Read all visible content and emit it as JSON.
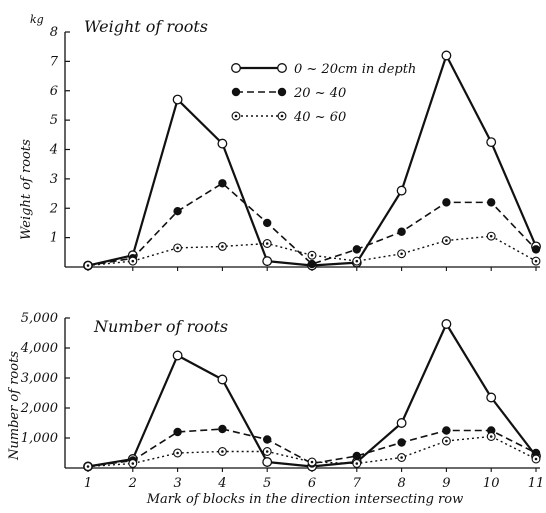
{
  "chart_data": [
    {
      "type": "line",
      "title": "Weight of roots",
      "unit": "kg",
      "ylabel": "Weight of roots",
      "xlabel": "",
      "categories": [
        "1",
        "2",
        "3",
        "4",
        "5",
        "6",
        "7",
        "8",
        "9",
        "10",
        "11"
      ],
      "y_ticks": [
        "1",
        "2",
        "3",
        "4",
        "5",
        "6",
        "7",
        "8"
      ],
      "ylim": [
        0,
        8
      ],
      "grid": false,
      "legend_position": "top-right",
      "series": [
        {
          "name": "0 ~ 20cm in depth",
          "values": [
            0.05,
            0.4,
            5.7,
            4.2,
            0.2,
            0.05,
            0.15,
            2.6,
            7.2,
            4.25,
            0.7
          ],
          "style": "solid",
          "marker": "open-circle",
          "color": "#111111"
        },
        {
          "name": "20 ~ 40",
          "values": [
            0.05,
            0.3,
            1.9,
            2.85,
            1.5,
            0.1,
            0.6,
            1.2,
            2.2,
            2.2,
            0.6
          ],
          "style": "dashed",
          "marker": "filled-circle",
          "color": "#111111"
        },
        {
          "name": "40 ~ 60",
          "values": [
            0.05,
            0.2,
            0.65,
            0.7,
            0.8,
            0.4,
            0.2,
            0.45,
            0.9,
            1.05,
            0.2
          ],
          "style": "dotted",
          "marker": "dotted-circle",
          "color": "#111111"
        }
      ]
    },
    {
      "type": "line",
      "title": "Number of roots",
      "ylabel": "Number of roots",
      "xlabel": "Mark of blocks in the direction intersecting row",
      "categories": [
        "1",
        "2",
        "3",
        "4",
        "5",
        "6",
        "7",
        "8",
        "9",
        "10",
        "11"
      ],
      "y_ticks": [
        "1,000",
        "2,000",
        "3,000",
        "4,000",
        "5,000"
      ],
      "ylim": [
        0,
        5000
      ],
      "grid": false,
      "series": [
        {
          "name": "0 ~ 20cm in depth",
          "values": [
            50,
            300,
            3750,
            2950,
            200,
            50,
            200,
            1500,
            4800,
            2350,
            400
          ],
          "style": "solid",
          "marker": "open-circle",
          "color": "#111111"
        },
        {
          "name": "20 ~ 40",
          "values": [
            50,
            250,
            1200,
            1300,
            950,
            150,
            400,
            850,
            1250,
            1250,
            500
          ],
          "style": "dashed",
          "marker": "filled-circle",
          "color": "#111111"
        },
        {
          "name": "40 ~ 60",
          "values": [
            50,
            150,
            500,
            550,
            550,
            200,
            150,
            350,
            900,
            1050,
            300
          ],
          "style": "dotted",
          "marker": "dotted-circle",
          "color": "#111111"
        }
      ]
    }
  ]
}
